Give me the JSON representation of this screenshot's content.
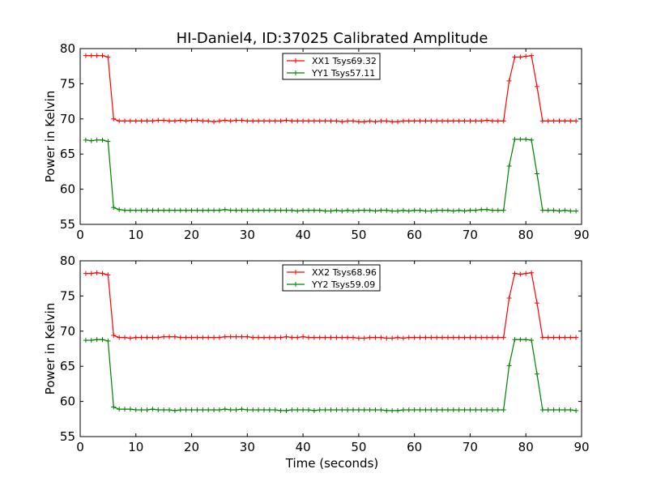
{
  "figure": {
    "title": "HI-Daniel4, ID:37025 Calibrated Amplitude",
    "xlabel": "Time (seconds)"
  },
  "chart_data": [
    {
      "type": "line",
      "ylabel": "Power in Kelvin",
      "xlim": [
        0,
        90
      ],
      "ylim": [
        55,
        80
      ],
      "xticks": [
        "0",
        "10",
        "20",
        "30",
        "40",
        "50",
        "60",
        "70",
        "80",
        "90"
      ],
      "yticks": [
        "55",
        "60",
        "65",
        "70",
        "75",
        "80"
      ],
      "grid": false,
      "legend_position": "top-center",
      "x": [
        1,
        2,
        3,
        4,
        5,
        6,
        7,
        8,
        9,
        10,
        11,
        12,
        13,
        14,
        15,
        16,
        17,
        18,
        19,
        20,
        21,
        22,
        23,
        24,
        25,
        26,
        27,
        28,
        29,
        30,
        31,
        32,
        33,
        34,
        35,
        36,
        37,
        38,
        39,
        40,
        41,
        42,
        43,
        44,
        45,
        46,
        47,
        48,
        49,
        50,
        51,
        52,
        53,
        54,
        55,
        56,
        57,
        58,
        59,
        60,
        61,
        62,
        63,
        64,
        65,
        66,
        67,
        68,
        69,
        70,
        71,
        72,
        73,
        74,
        75,
        76,
        77,
        78,
        79,
        80,
        81,
        82,
        83,
        84,
        85,
        86,
        87,
        88,
        89
      ],
      "series": [
        {
          "name": "XX1 Tsys69.32",
          "color": "#ff0000",
          "values": [
            79.0,
            79.0,
            79.0,
            79.0,
            78.8,
            70.0,
            69.7,
            69.7,
            69.7,
            69.7,
            69.7,
            69.7,
            69.7,
            69.8,
            69.8,
            69.7,
            69.7,
            69.8,
            69.7,
            69.8,
            69.8,
            69.7,
            69.7,
            69.6,
            69.7,
            69.8,
            69.7,
            69.8,
            69.8,
            69.7,
            69.7,
            69.7,
            69.7,
            69.7,
            69.7,
            69.7,
            69.8,
            69.7,
            69.7,
            69.7,
            69.7,
            69.7,
            69.7,
            69.7,
            69.7,
            69.7,
            69.6,
            69.7,
            69.7,
            69.6,
            69.6,
            69.7,
            69.6,
            69.7,
            69.7,
            69.6,
            69.6,
            69.7,
            69.7,
            69.7,
            69.7,
            69.7,
            69.7,
            69.7,
            69.7,
            69.7,
            69.7,
            69.7,
            69.7,
            69.7,
            69.7,
            69.7,
            69.8,
            69.7,
            69.7,
            69.7,
            75.4,
            78.8,
            78.8,
            78.9,
            79.0,
            74.6,
            69.7,
            69.7,
            69.7,
            69.7,
            69.7,
            69.7,
            69.7
          ]
        },
        {
          "name": "YY1 Tsys57.11",
          "color": "#008000",
          "values": [
            67.0,
            66.9,
            67.0,
            67.0,
            66.8,
            57.4,
            57.1,
            57.0,
            57.0,
            57.0,
            57.0,
            57.0,
            57.0,
            57.0,
            57.0,
            57.0,
            57.0,
            57.0,
            57.0,
            57.0,
            57.0,
            57.0,
            57.0,
            57.0,
            57.0,
            57.1,
            57.0,
            57.0,
            57.0,
            57.0,
            57.0,
            57.0,
            57.0,
            57.0,
            57.0,
            57.0,
            57.0,
            57.0,
            56.9,
            57.0,
            57.0,
            57.0,
            57.0,
            56.9,
            56.9,
            57.0,
            56.9,
            57.0,
            56.9,
            57.0,
            57.0,
            57.0,
            56.9,
            57.0,
            57.0,
            56.9,
            56.9,
            57.0,
            56.9,
            57.0,
            57.0,
            56.9,
            56.9,
            57.0,
            57.0,
            57.0,
            56.9,
            57.0,
            56.9,
            57.0,
            57.0,
            57.1,
            57.1,
            57.0,
            57.0,
            57.0,
            63.3,
            67.1,
            67.1,
            67.1,
            67.0,
            62.2,
            57.0,
            57.0,
            57.0,
            56.9,
            57.0,
            56.9,
            56.9
          ]
        }
      ]
    },
    {
      "type": "line",
      "ylabel": "Power in Kelvin",
      "xlabel": "Time (seconds)",
      "xlim": [
        0,
        90
      ],
      "ylim": [
        55,
        80
      ],
      "xticks": [
        "0",
        "10",
        "20",
        "30",
        "40",
        "50",
        "60",
        "70",
        "80",
        "90"
      ],
      "yticks": [
        "55",
        "60",
        "65",
        "70",
        "75",
        "80"
      ],
      "grid": false,
      "legend_position": "top-center",
      "x": [
        1,
        2,
        3,
        4,
        5,
        6,
        7,
        8,
        9,
        10,
        11,
        12,
        13,
        14,
        15,
        16,
        17,
        18,
        19,
        20,
        21,
        22,
        23,
        24,
        25,
        26,
        27,
        28,
        29,
        30,
        31,
        32,
        33,
        34,
        35,
        36,
        37,
        38,
        39,
        40,
        41,
        42,
        43,
        44,
        45,
        46,
        47,
        48,
        49,
        50,
        51,
        52,
        53,
        54,
        55,
        56,
        57,
        58,
        59,
        60,
        61,
        62,
        63,
        64,
        65,
        66,
        67,
        68,
        69,
        70,
        71,
        72,
        73,
        74,
        75,
        76,
        77,
        78,
        79,
        80,
        81,
        82,
        83,
        84,
        85,
        86,
        87,
        88,
        89
      ],
      "series": [
        {
          "name": "XX2 Tsys68.96",
          "color": "#ff0000",
          "values": [
            78.2,
            78.2,
            78.3,
            78.2,
            78.0,
            69.4,
            69.1,
            69.1,
            69.0,
            69.1,
            69.1,
            69.1,
            69.1,
            69.1,
            69.2,
            69.2,
            69.2,
            69.1,
            69.1,
            69.1,
            69.1,
            69.1,
            69.1,
            69.1,
            69.1,
            69.2,
            69.2,
            69.2,
            69.2,
            69.2,
            69.1,
            69.1,
            69.1,
            69.1,
            69.1,
            69.1,
            69.2,
            69.1,
            69.1,
            69.2,
            69.1,
            69.1,
            69.1,
            69.1,
            69.1,
            69.1,
            69.1,
            69.1,
            69.1,
            69.0,
            69.0,
            69.1,
            69.1,
            69.1,
            69.0,
            69.0,
            69.1,
            69.0,
            69.1,
            69.1,
            69.1,
            69.1,
            69.1,
            69.1,
            69.1,
            69.1,
            69.1,
            69.1,
            69.1,
            69.1,
            69.1,
            69.1,
            69.1,
            69.1,
            69.1,
            69.1,
            74.7,
            78.2,
            78.1,
            78.2,
            78.3,
            74.0,
            69.1,
            69.1,
            69.1,
            69.1,
            69.1,
            69.1,
            69.1
          ]
        },
        {
          "name": "YY2 Tsys59.09",
          "color": "#008000",
          "values": [
            68.7,
            68.7,
            68.8,
            68.8,
            68.6,
            59.2,
            58.9,
            58.9,
            58.9,
            58.8,
            58.8,
            58.8,
            58.9,
            58.8,
            58.8,
            58.8,
            58.7,
            58.8,
            58.8,
            58.8,
            58.8,
            58.8,
            58.8,
            58.8,
            58.8,
            58.9,
            58.8,
            58.8,
            58.9,
            58.8,
            58.8,
            58.8,
            58.8,
            58.8,
            58.8,
            58.7,
            58.7,
            58.8,
            58.8,
            58.8,
            58.8,
            58.7,
            58.8,
            58.8,
            58.8,
            58.8,
            58.8,
            58.8,
            58.8,
            58.8,
            58.8,
            58.8,
            58.8,
            58.8,
            58.7,
            58.7,
            58.7,
            58.8,
            58.8,
            58.8,
            58.8,
            58.8,
            58.8,
            58.8,
            58.8,
            58.8,
            58.8,
            58.8,
            58.8,
            58.8,
            58.8,
            58.8,
            58.8,
            58.8,
            58.8,
            58.8,
            65.1,
            68.8,
            68.8,
            68.8,
            68.7,
            63.9,
            58.8,
            58.8,
            58.8,
            58.8,
            58.8,
            58.8,
            58.7
          ]
        }
      ]
    }
  ]
}
